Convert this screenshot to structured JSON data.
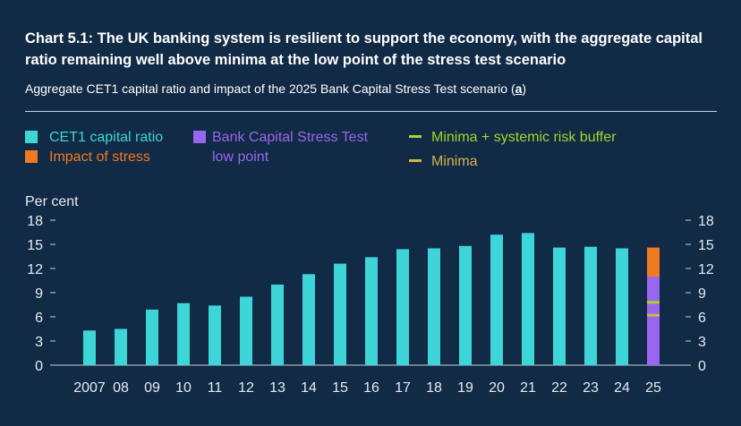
{
  "header": {
    "title": "Chart 5.1: The UK banking system is resilient to support the economy, with the aggregate capital ratio remaining well above minima at the low point of the stress test scenario",
    "subtitle": "Aggregate CET1 capital ratio and impact of the 2025 Bank Capital Stress Test scenario",
    "note_open": "(",
    "note_mark": "a",
    "note_close": ")"
  },
  "legend": {
    "cet1": "CET1 capital ratio",
    "impact": "Impact of stress",
    "low_point_line1": "Bank Capital Stress Test",
    "low_point_line2": "low point",
    "minima_buffer": "Minima + systemic risk buffer",
    "minima": "Minima"
  },
  "colors": {
    "background": "#112a45",
    "cet1": "#3dd5d8",
    "impact": "#f07a22",
    "low_point": "#9966f0",
    "minima_buffer": "#a6d42a",
    "minima": "#d6b34a",
    "axis": "#c8d0da"
  },
  "chart_data": {
    "type": "bar",
    "ylabel": "Per cent",
    "ylim": [
      0,
      18
    ],
    "yticks": [
      0,
      3,
      6,
      9,
      12,
      15,
      18
    ],
    "categories": [
      "2007",
      "08",
      "09",
      "10",
      "11",
      "12",
      "13",
      "14",
      "15",
      "16",
      "17",
      "18",
      "19",
      "20",
      "21",
      "22",
      "23",
      "24",
      "25"
    ],
    "series": [
      {
        "name": "CET1 capital ratio",
        "values": [
          4.3,
          4.5,
          6.9,
          7.7,
          7.4,
          8.5,
          10.0,
          11.3,
          12.6,
          13.4,
          14.4,
          14.5,
          14.8,
          16.2,
          16.4,
          14.6,
          14.7,
          14.5,
          null
        ]
      },
      {
        "name": "Bank Capital Stress Test low point",
        "values": [
          null,
          null,
          null,
          null,
          null,
          null,
          null,
          null,
          null,
          null,
          null,
          null,
          null,
          null,
          null,
          null,
          null,
          null,
          11.0
        ]
      },
      {
        "name": "Impact of stress",
        "values": [
          null,
          null,
          null,
          null,
          null,
          null,
          null,
          null,
          null,
          null,
          null,
          null,
          null,
          null,
          null,
          null,
          null,
          null,
          3.6
        ]
      }
    ],
    "markers": [
      {
        "name": "Minima + systemic risk buffer",
        "category": "25",
        "value": 7.8
      },
      {
        "name": "Minima",
        "category": "25",
        "value": 6.2
      }
    ],
    "legend_position": "top",
    "grid": false
  }
}
